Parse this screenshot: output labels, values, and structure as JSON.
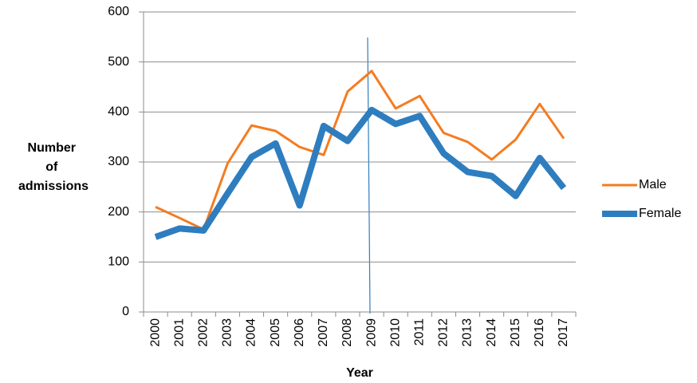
{
  "chart_data": {
    "type": "line",
    "x_label": "Year",
    "y_label": "Number of admissions",
    "categories": [
      "2000",
      "2001",
      "2002",
      "2003",
      "2004",
      "2005",
      "2006",
      "2007",
      "2008",
      "2009",
      "2010",
      "2011",
      "2012",
      "2013",
      "2014",
      "2015",
      "2016",
      "2017"
    ],
    "series": [
      {
        "name": "Male",
        "color": "#f47c20",
        "width": 3,
        "values": [
          210,
          188,
          165,
          297,
          373,
          362,
          330,
          314,
          441,
          482,
          407,
          432,
          358,
          340,
          305,
          345,
          416,
          347
        ]
      },
      {
        "name": "Female",
        "color": "#2e7dbf",
        "width": 8,
        "values": [
          150,
          167,
          163,
          237,
          310,
          337,
          213,
          372,
          342,
          404,
          376,
          392,
          317,
          280,
          272,
          232,
          308,
          248
        ]
      }
    ],
    "ylim": [
      0,
      600
    ],
    "yticks": [
      0,
      100,
      200,
      300,
      400,
      500,
      600
    ],
    "grid": true,
    "legend": "right"
  }
}
